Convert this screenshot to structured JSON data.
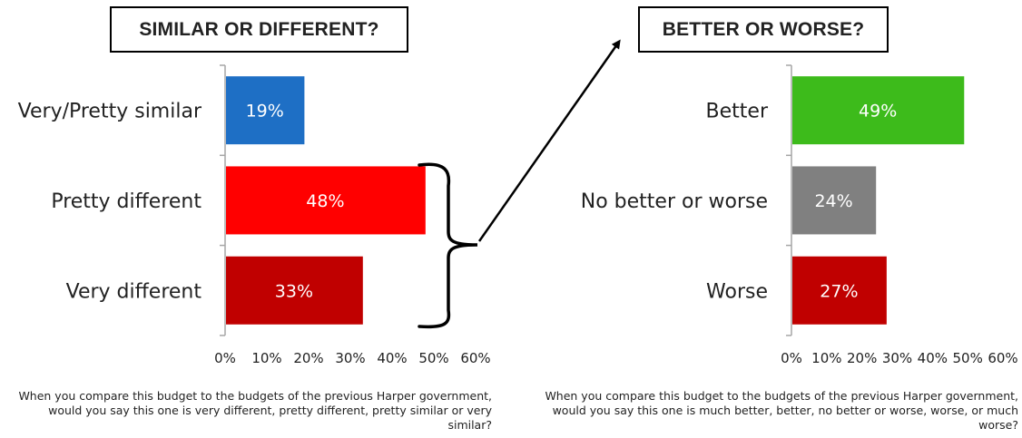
{
  "chart_data": [
    {
      "type": "bar",
      "orientation": "horizontal",
      "title": "SIMILAR OR DIFFERENT?",
      "categories": [
        "Very/Pretty similar",
        "Pretty different",
        "Very different"
      ],
      "values": [
        19,
        48,
        33
      ],
      "value_labels": [
        "19%",
        "48%",
        "33%"
      ],
      "colors": [
        "#1e6fc5",
        "#ff0000",
        "#c00000"
      ],
      "xlim": [
        0,
        60
      ],
      "xticks": [
        "0%",
        "10%",
        "20%",
        "30%",
        "40%",
        "50%",
        "60%"
      ],
      "grid": false,
      "question": "When you compare this budget to the budgets of the previous Harper government, would you say this one is very different, pretty different, pretty similar or very similar?"
    },
    {
      "type": "bar",
      "orientation": "horizontal",
      "title": "BETTER OR WORSE?",
      "categories": [
        "Better",
        "No better or worse",
        "Worse"
      ],
      "values": [
        49,
        24,
        27
      ],
      "value_labels": [
        "49%",
        "24%",
        "27%"
      ],
      "colors": [
        "#3dbb1b",
        "#808080",
        "#c00000"
      ],
      "xlim": [
        0,
        60
      ],
      "xticks": [
        "0%",
        "10%",
        "20%",
        "30%",
        "40%",
        "50%",
        "60%"
      ],
      "grid": false,
      "question": "When you compare this budget to the budgets of the previous Harper government, would you say this one is much better, better, no better or worse, worse, or much worse?"
    }
  ]
}
